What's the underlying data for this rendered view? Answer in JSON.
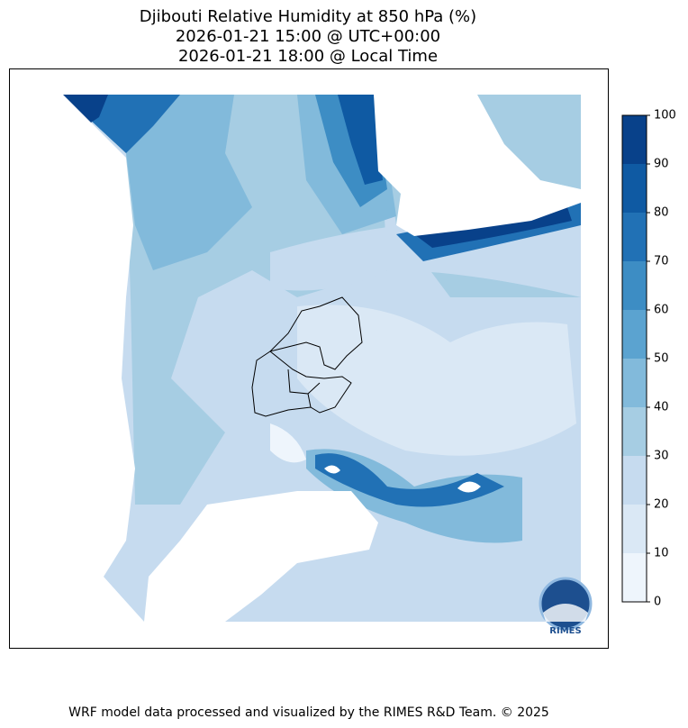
{
  "title": [
    "Djibouti Relative Humidity at 850 hPa (%)",
    "2026-01-21 15:00 @ UTC+00:00",
    "2026-01-21 18:00 @ Local Time"
  ],
  "colorbar": {
    "ticks": [
      0,
      10,
      20,
      30,
      40,
      50,
      60,
      70,
      80,
      90,
      100
    ],
    "colors": [
      "#eef5fc",
      "#dae8f5",
      "#c6dbef",
      "#a6cde3",
      "#82badb",
      "#5ba3d0",
      "#3d8dc4",
      "#2171b5",
      "#0f5aa3",
      "#08418a"
    ]
  },
  "logo": "RIMES",
  "footer": "WRF model data processed and visualized by the RIMES R&D Team. © 2025"
}
